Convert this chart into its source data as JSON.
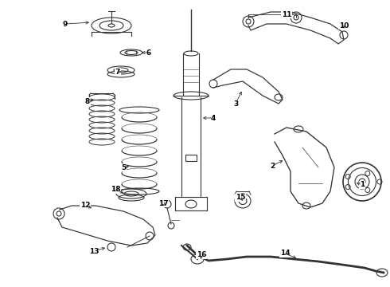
{
  "background_color": "#ffffff",
  "line_color": "#333333",
  "label_data": {
    "9": [
      82,
      30,
      115,
      28
    ],
    "6": [
      187,
      66,
      175,
      66
    ],
    "7": [
      148,
      90,
      153,
      90
    ],
    "8": [
      110,
      127,
      120,
      125
    ],
    "5": [
      155,
      210,
      165,
      208
    ],
    "18": [
      145,
      238,
      158,
      243
    ],
    "4": [
      268,
      148,
      252,
      148
    ],
    "3": [
      296,
      130,
      305,
      112
    ],
    "11": [
      360,
      18,
      360,
      22
    ],
    "10": [
      432,
      32,
      432,
      38
    ],
    "2": [
      342,
      208,
      358,
      200
    ],
    "1": [
      455,
      232,
      445,
      228
    ],
    "12": [
      107,
      258,
      118,
      262
    ],
    "13": [
      118,
      315,
      135,
      310
    ],
    "17": [
      205,
      255,
      210,
      260
    ],
    "15": [
      302,
      248,
      305,
      252
    ],
    "16": [
      253,
      320,
      252,
      328
    ],
    "14": [
      358,
      318,
      375,
      325
    ]
  }
}
